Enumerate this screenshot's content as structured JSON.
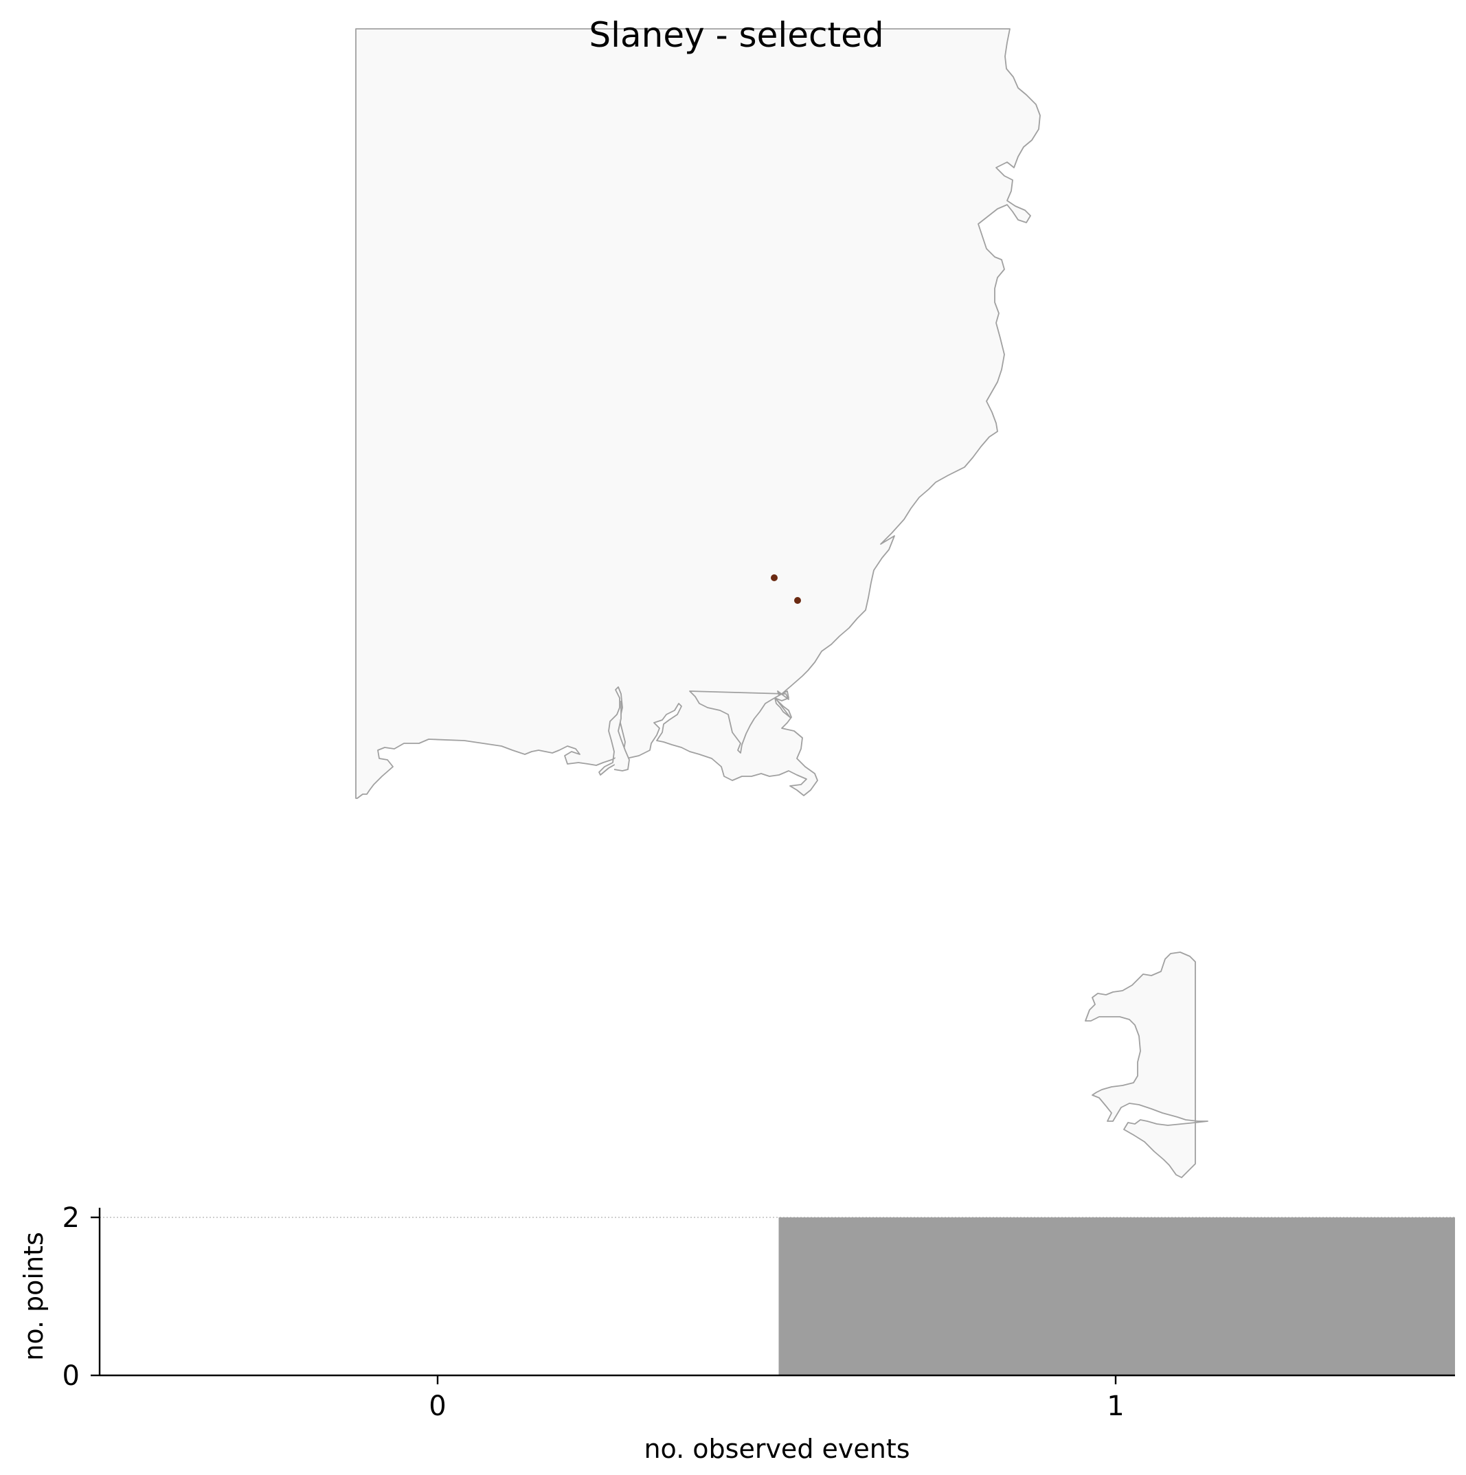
{
  "map": {
    "title": "Slaney - selected",
    "point_color": "#6b2a12",
    "land_color": "#f9f9f9",
    "coast_color": "#a0a0a0"
  },
  "chart_data": {
    "type": "bar",
    "categories": [
      "0",
      "1"
    ],
    "values": [
      0,
      2
    ],
    "bar_color": "#9e9e9e",
    "xlabel": "no. observed events",
    "ylabel": "no. points",
    "yticks": [
      "0",
      "2"
    ],
    "ylim": [
      0,
      2
    ],
    "grid": "dotted line at y=2"
  }
}
